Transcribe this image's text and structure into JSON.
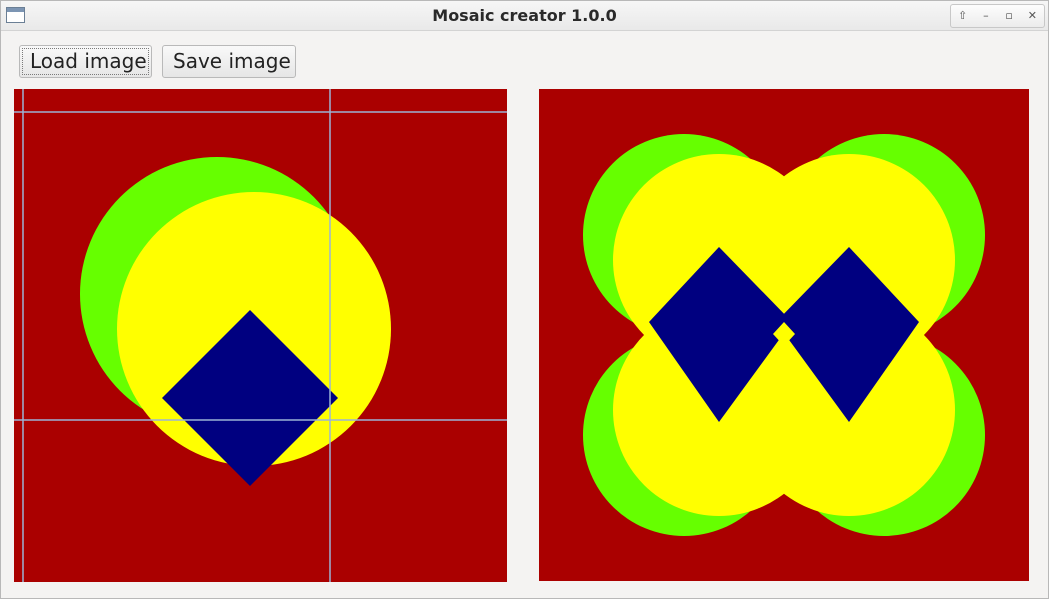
{
  "window": {
    "title": "Mosaic creator 1.0.0",
    "controls": [
      {
        "name": "shade-button",
        "glyph": "⇧"
      },
      {
        "name": "minimize-button",
        "glyph": "–"
      },
      {
        "name": "maximize-button",
        "glyph": "▫"
      },
      {
        "name": "close-button",
        "glyph": "✕"
      }
    ]
  },
  "toolbar": {
    "load_label": "Load image",
    "save_label": "Save image"
  },
  "colors": {
    "background": "#aa0000",
    "green": "#66ff00",
    "yellow": "#ffff00",
    "navy": "#000080",
    "guide": "#9bb3d6"
  },
  "icons": {
    "app": "window-icon"
  }
}
